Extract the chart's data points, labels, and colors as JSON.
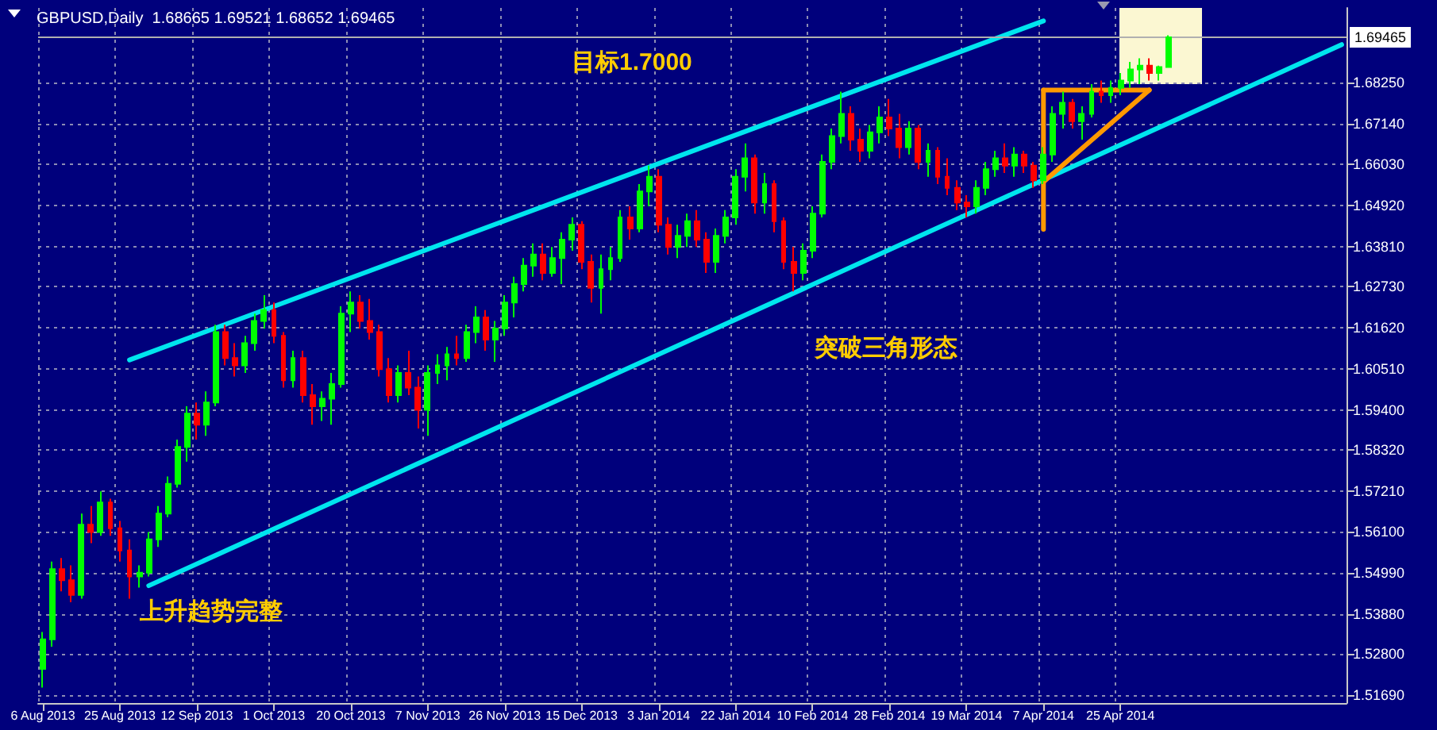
{
  "chart_data": {
    "type": "candlestick",
    "title": "GBPUSD,Daily  1.68665 1.69521 1.68652 1.69465",
    "categories": [
      "6 Aug 2013",
      null,
      null,
      null,
      null,
      null,
      null,
      null,
      "25 Aug 2013",
      null,
      null,
      null,
      null,
      null,
      null,
      null,
      "12 Sep 2013",
      null,
      null,
      null,
      null,
      null,
      null,
      null,
      "1 Oct 2013",
      null,
      null,
      null,
      null,
      null,
      null,
      null,
      "20 Oct 2013",
      null,
      null,
      null,
      null,
      null,
      null,
      null,
      "7 Nov 2013",
      null,
      null,
      null,
      null,
      null,
      null,
      null,
      "26 Nov 2013",
      null,
      null,
      null,
      null,
      null,
      null,
      null,
      "15 Dec 2013",
      null,
      null,
      null,
      null,
      null,
      null,
      null,
      "3 Jan 2014",
      null,
      null,
      null,
      null,
      null,
      null,
      null,
      "22 Jan 2014",
      null,
      null,
      null,
      null,
      null,
      null,
      null,
      "10 Feb 2014",
      null,
      null,
      null,
      null,
      null,
      null,
      null,
      "28 Feb 2014",
      null,
      null,
      null,
      null,
      null,
      null,
      null,
      "19 Mar 2014",
      null,
      null,
      null,
      null,
      null,
      null,
      null,
      "7 Apr 2014",
      null,
      null,
      null,
      null,
      null,
      null,
      null,
      "25 Apr 2014",
      null,
      null,
      null,
      null,
      null,
      null,
      null,
      null,
      null,
      null,
      null,
      null,
      null,
      null,
      null,
      null,
      null,
      null,
      null,
      null,
      null,
      null,
      null
    ],
    "ohlc": [
      [
        1.524,
        1.534,
        1.519,
        1.532
      ],
      [
        1.532,
        1.553,
        1.53,
        1.551
      ],
      [
        1.551,
        1.554,
        1.545,
        1.548
      ],
      [
        1.548,
        1.552,
        1.542,
        1.544
      ],
      [
        1.544,
        1.566,
        1.543,
        1.563
      ],
      [
        1.563,
        1.568,
        1.558,
        1.561
      ],
      [
        1.561,
        1.572,
        1.56,
        1.569
      ],
      [
        1.569,
        1.57,
        1.56,
        1.562
      ],
      [
        1.562,
        1.564,
        1.553,
        1.556
      ],
      [
        1.556,
        1.559,
        1.543,
        1.549
      ],
      [
        1.549,
        1.552,
        1.546,
        1.55
      ],
      [
        1.55,
        1.561,
        1.549,
        1.559
      ],
      [
        1.559,
        1.568,
        1.557,
        1.566
      ],
      [
        1.566,
        1.576,
        1.565,
        1.574
      ],
      [
        1.574,
        1.586,
        1.573,
        1.584
      ],
      [
        1.584,
        1.595,
        1.58,
        1.593
      ],
      [
        1.593,
        1.596,
        1.586,
        1.59
      ],
      [
        1.59,
        1.599,
        1.587,
        1.596
      ],
      [
        1.596,
        1.617,
        1.595,
        1.615
      ],
      [
        1.615,
        1.617,
        1.606,
        1.608
      ],
      [
        1.608,
        1.612,
        1.603,
        1.606
      ],
      [
        1.606,
        1.614,
        1.604,
        1.612
      ],
      [
        1.612,
        1.62,
        1.61,
        1.618
      ],
      [
        1.618,
        1.625,
        1.616,
        1.621
      ],
      [
        1.621,
        1.623,
        1.612,
        1.614
      ],
      [
        1.614,
        1.615,
        1.6,
        1.602
      ],
      [
        1.602,
        1.61,
        1.6,
        1.608
      ],
      [
        1.608,
        1.61,
        1.596,
        1.598
      ],
      [
        1.598,
        1.601,
        1.59,
        1.595
      ],
      [
        1.595,
        1.599,
        1.591,
        1.597
      ],
      [
        1.597,
        1.604,
        1.59,
        1.601
      ],
      [
        1.601,
        1.622,
        1.6,
        1.62
      ],
      [
        1.62,
        1.626,
        1.615,
        1.623
      ],
      [
        1.623,
        1.625,
        1.616,
        1.618
      ],
      [
        1.618,
        1.624,
        1.613,
        1.615
      ],
      [
        1.615,
        1.617,
        1.603,
        1.605
      ],
      [
        1.605,
        1.608,
        1.596,
        1.598
      ],
      [
        1.598,
        1.606,
        1.596,
        1.604
      ],
      [
        1.604,
        1.61,
        1.598,
        1.6
      ],
      [
        1.6,
        1.603,
        1.589,
        1.594
      ],
      [
        1.594,
        1.606,
        1.587,
        1.604
      ],
      [
        1.604,
        1.609,
        1.601,
        1.606
      ],
      [
        1.606,
        1.611,
        1.602,
        1.609
      ],
      [
        1.609,
        1.614,
        1.606,
        1.608
      ],
      [
        1.608,
        1.617,
        1.607,
        1.615
      ],
      [
        1.615,
        1.622,
        1.612,
        1.619
      ],
      [
        1.619,
        1.621,
        1.61,
        1.613
      ],
      [
        1.613,
        1.618,
        1.607,
        1.616
      ],
      [
        1.616,
        1.625,
        1.614,
        1.623
      ],
      [
        1.623,
        1.63,
        1.619,
        1.628
      ],
      [
        1.628,
        1.635,
        1.626,
        1.633
      ],
      [
        1.633,
        1.639,
        1.63,
        1.636
      ],
      [
        1.636,
        1.639,
        1.629,
        1.631
      ],
      [
        1.631,
        1.638,
        1.63,
        1.635
      ],
      [
        1.635,
        1.642,
        1.628,
        1.64
      ],
      [
        1.64,
        1.646,
        1.637,
        1.644
      ],
      [
        1.644,
        1.645,
        1.632,
        1.634
      ],
      [
        1.634,
        1.636,
        1.623,
        1.627
      ],
      [
        1.627,
        1.636,
        1.62,
        1.632
      ],
      [
        1.632,
        1.638,
        1.629,
        1.635
      ],
      [
        1.635,
        1.648,
        1.634,
        1.646
      ],
      [
        1.646,
        1.649,
        1.64,
        1.643
      ],
      [
        1.643,
        1.655,
        1.642,
        1.653
      ],
      [
        1.653,
        1.66,
        1.649,
        1.657
      ],
      [
        1.657,
        1.659,
        1.642,
        1.644
      ],
      [
        1.644,
        1.646,
        1.636,
        1.638
      ],
      [
        1.638,
        1.644,
        1.635,
        1.641
      ],
      [
        1.641,
        1.647,
        1.638,
        1.645
      ],
      [
        1.645,
        1.648,
        1.638,
        1.64
      ],
      [
        1.64,
        1.642,
        1.631,
        1.634
      ],
      [
        1.634,
        1.643,
        1.631,
        1.641
      ],
      [
        1.641,
        1.648,
        1.639,
        1.646
      ],
      [
        1.646,
        1.659,
        1.644,
        1.657
      ],
      [
        1.657,
        1.666,
        1.653,
        1.662
      ],
      [
        1.662,
        1.663,
        1.647,
        1.65
      ],
      [
        1.65,
        1.658,
        1.647,
        1.655
      ],
      [
        1.655,
        1.656,
        1.642,
        1.645
      ],
      [
        1.645,
        1.646,
        1.632,
        1.634
      ],
      [
        1.634,
        1.638,
        1.626,
        1.631
      ],
      [
        1.631,
        1.639,
        1.629,
        1.637
      ],
      [
        1.637,
        1.649,
        1.635,
        1.647
      ],
      [
        1.647,
        1.663,
        1.646,
        1.661
      ],
      [
        1.661,
        1.67,
        1.659,
        1.668
      ],
      [
        1.668,
        1.68,
        1.666,
        1.674
      ],
      [
        1.674,
        1.676,
        1.664,
        1.667
      ],
      [
        1.667,
        1.67,
        1.661,
        1.664
      ],
      [
        1.664,
        1.671,
        1.662,
        1.669
      ],
      [
        1.669,
        1.676,
        1.666,
        1.673
      ],
      [
        1.673,
        1.678,
        1.668,
        1.67
      ],
      [
        1.67,
        1.674,
        1.662,
        1.665
      ],
      [
        1.665,
        1.672,
        1.663,
        1.67
      ],
      [
        1.67,
        1.671,
        1.659,
        1.661
      ],
      [
        1.661,
        1.666,
        1.657,
        1.664
      ],
      [
        1.664,
        1.665,
        1.655,
        1.657
      ],
      [
        1.657,
        1.662,
        1.652,
        1.654
      ],
      [
        1.654,
        1.656,
        1.648,
        1.65
      ],
      [
        1.65,
        1.652,
        1.646,
        1.649
      ],
      [
        1.649,
        1.656,
        1.647,
        1.654
      ],
      [
        1.654,
        1.661,
        1.652,
        1.659
      ],
      [
        1.659,
        1.664,
        1.657,
        1.662
      ],
      [
        1.662,
        1.666,
        1.658,
        1.66
      ],
      [
        1.66,
        1.665,
        1.657,
        1.663
      ],
      [
        1.663,
        1.664,
        1.658,
        1.66
      ],
      [
        1.66,
        1.661,
        1.654,
        1.656
      ],
      [
        1.656,
        1.665,
        1.655,
        1.663
      ],
      [
        1.663,
        1.676,
        1.661,
        1.674
      ],
      [
        1.674,
        1.68,
        1.67,
        1.677
      ],
      [
        1.677,
        1.678,
        1.67,
        1.672
      ],
      [
        1.672,
        1.676,
        1.667,
        1.674
      ],
      [
        1.674,
        1.682,
        1.673,
        1.68
      ],
      [
        1.68,
        1.683,
        1.677,
        1.679
      ],
      [
        1.679,
        1.683,
        1.677,
        1.681
      ],
      [
        1.681,
        1.685,
        1.679,
        1.683
      ],
      [
        1.683,
        1.688,
        1.681,
        1.686
      ],
      [
        1.686,
        1.689,
        1.682,
        1.687
      ],
      [
        1.687,
        1.689,
        1.683,
        1.685
      ],
      [
        1.685,
        1.687,
        1.683,
        1.68665
      ],
      [
        1.68665,
        1.69521,
        1.68652,
        1.69465
      ],
      null,
      null,
      null,
      null,
      null,
      null,
      null,
      null,
      null,
      null,
      null,
      null,
      null,
      null,
      null,
      null,
      null,
      null
    ],
    "series": [
      {
        "type": "line",
        "color": "#00e5ee",
        "values": [
          null,
          null,
          null,
          null,
          null,
          null,
          null,
          null,
          null,
          1.6075,
          null,
          null,
          null,
          null,
          null,
          null,
          null,
          null,
          null,
          null,
          null,
          null,
          null,
          null,
          null,
          null,
          null,
          null,
          null,
          null,
          null,
          null,
          null,
          null,
          null,
          null,
          null,
          null,
          null,
          null,
          null,
          null,
          null,
          null,
          null,
          null,
          null,
          null,
          null,
          null,
          null,
          null,
          null,
          null,
          null,
          null,
          null,
          null,
          null,
          null,
          null,
          null,
          null,
          null,
          null,
          null,
          null,
          null,
          null,
          null,
          null,
          null,
          null,
          null,
          null,
          null,
          null,
          null,
          null,
          null,
          null,
          null,
          null,
          null,
          null,
          null,
          null,
          null,
          null,
          null,
          null,
          null,
          null,
          null,
          null,
          null,
          null,
          null,
          null,
          null,
          null,
          null,
          null,
          null,
          1.6991,
          null,
          null,
          null,
          null,
          null,
          null,
          null,
          null,
          null,
          null,
          null,
          null,
          null,
          null,
          null,
          null,
          null,
          null,
          null,
          null,
          null,
          null,
          null,
          null,
          null,
          null,
          null,
          null,
          null,
          null,
          null
        ]
      },
      {
        "type": "line",
        "color": "#00e5ee",
        "values": [
          null,
          null,
          null,
          null,
          null,
          null,
          null,
          null,
          null,
          null,
          null,
          1.5465,
          null,
          null,
          null,
          null,
          null,
          null,
          null,
          null,
          null,
          null,
          null,
          null,
          null,
          null,
          null,
          null,
          null,
          null,
          null,
          null,
          null,
          null,
          null,
          null,
          null,
          null,
          null,
          null,
          null,
          null,
          null,
          null,
          null,
          null,
          null,
          null,
          null,
          null,
          null,
          null,
          null,
          null,
          null,
          null,
          null,
          null,
          null,
          null,
          null,
          null,
          null,
          null,
          null,
          null,
          null,
          null,
          null,
          null,
          null,
          null,
          null,
          null,
          null,
          null,
          null,
          null,
          null,
          null,
          null,
          null,
          null,
          null,
          null,
          null,
          null,
          null,
          null,
          null,
          null,
          null,
          null,
          null,
          null,
          null,
          null,
          null,
          null,
          null,
          null,
          null,
          null,
          null,
          null,
          null,
          null,
          null,
          null,
          null,
          null,
          null,
          null,
          null,
          null,
          null,
          null,
          null,
          null,
          null,
          null,
          null,
          null,
          null,
          null,
          null,
          null,
          null,
          null,
          null,
          null,
          null,
          null,
          null,
          null,
          1.6927
        ]
      },
      {
        "type": "line",
        "color": "#ff9900",
        "values": [
          null,
          null,
          null,
          null,
          null,
          null,
          null,
          null,
          null,
          null,
          null,
          null,
          null,
          null,
          null,
          null,
          null,
          null,
          null,
          null,
          null,
          null,
          null,
          null,
          null,
          null,
          null,
          null,
          null,
          null,
          null,
          null,
          null,
          null,
          null,
          null,
          null,
          null,
          null,
          null,
          null,
          null,
          null,
          null,
          null,
          null,
          null,
          null,
          null,
          null,
          null,
          null,
          null,
          null,
          null,
          null,
          null,
          null,
          null,
          null,
          null,
          null,
          null,
          null,
          null,
          null,
          null,
          null,
          null,
          null,
          null,
          null,
          null,
          null,
          null,
          null,
          null,
          null,
          null,
          null,
          null,
          null,
          null,
          null,
          null,
          null,
          null,
          null,
          null,
          null,
          null,
          null,
          null,
          null,
          null,
          null,
          null,
          null,
          null,
          null,
          null,
          null,
          null,
          null,
          1.6804,
          null,
          null,
          null,
          null,
          null,
          null,
          null,
          null,
          null,
          null,
          1.6804,
          null,
          null,
          null,
          null,
          null,
          null,
          null,
          null,
          null,
          null,
          null,
          null,
          null,
          null,
          null,
          null,
          null,
          null,
          null,
          null
        ]
      },
      {
        "type": "line",
        "color": "#ff9900",
        "values": [
          null,
          null,
          null,
          null,
          null,
          null,
          null,
          null,
          null,
          null,
          null,
          null,
          null,
          null,
          null,
          null,
          null,
          null,
          null,
          null,
          null,
          null,
          null,
          null,
          null,
          null,
          null,
          null,
          null,
          null,
          null,
          null,
          null,
          null,
          null,
          null,
          null,
          null,
          null,
          null,
          null,
          null,
          null,
          null,
          null,
          null,
          null,
          null,
          null,
          null,
          null,
          null,
          null,
          null,
          null,
          null,
          null,
          null,
          null,
          null,
          null,
          null,
          null,
          null,
          null,
          null,
          null,
          null,
          null,
          null,
          null,
          null,
          null,
          null,
          null,
          null,
          null,
          null,
          null,
          null,
          null,
          null,
          null,
          null,
          null,
          null,
          null,
          null,
          null,
          null,
          null,
          null,
          null,
          null,
          null,
          null,
          null,
          null,
          null,
          null,
          null,
          null,
          null,
          null,
          1.6556,
          null,
          null,
          null,
          null,
          null,
          null,
          null,
          null,
          null,
          null,
          1.6804,
          null,
          null,
          null,
          null,
          null,
          null,
          null,
          null,
          null,
          null,
          null,
          null,
          null,
          null,
          null,
          null,
          null,
          null,
          null,
          null
        ]
      },
      {
        "type": "line",
        "color": "#ff9900",
        "x": [
          "7 Apr 2014",
          "7 Apr 2014"
        ],
        "values": [
          1.6804,
          1.6428
        ]
      }
    ],
    "ylim": [
      1.5148,
      1.7026
    ],
    "yticks": [
      {
        "value": 1.6825,
        "label": "1.68250"
      },
      {
        "value": 1.6714,
        "label": "1.67140"
      },
      {
        "value": 1.6603,
        "label": "1.66030"
      },
      {
        "value": 1.6492,
        "label": "1.64920"
      },
      {
        "value": 1.6381,
        "label": "1.63810"
      },
      {
        "value": 1.6273,
        "label": "1.62730"
      },
      {
        "value": 1.6162,
        "label": "1.61620"
      },
      {
        "value": 1.6051,
        "label": "1.60510"
      },
      {
        "value": 1.594,
        "label": "1.59400"
      },
      {
        "value": 1.5832,
        "label": "1.58320"
      },
      {
        "value": 1.5721,
        "label": "1.57210"
      },
      {
        "value": 1.561,
        "label": "1.56100"
      },
      {
        "value": 1.5499,
        "label": "1.54990"
      },
      {
        "value": 1.5388,
        "label": "1.53880"
      },
      {
        "value": 1.528,
        "label": "1.52800"
      },
      {
        "value": 1.5169,
        "label": "1.51690"
      }
    ],
    "ref_lines": [
      {
        "axis": "y",
        "value": 1.69465,
        "label": "1.69465",
        "color": "#b0b0b0"
      }
    ],
    "annotations": [
      "目标1.7000",
      "上升趋势完整",
      "突破三角形态"
    ],
    "grid": true,
    "marker": "none",
    "line_style": "solid"
  }
}
